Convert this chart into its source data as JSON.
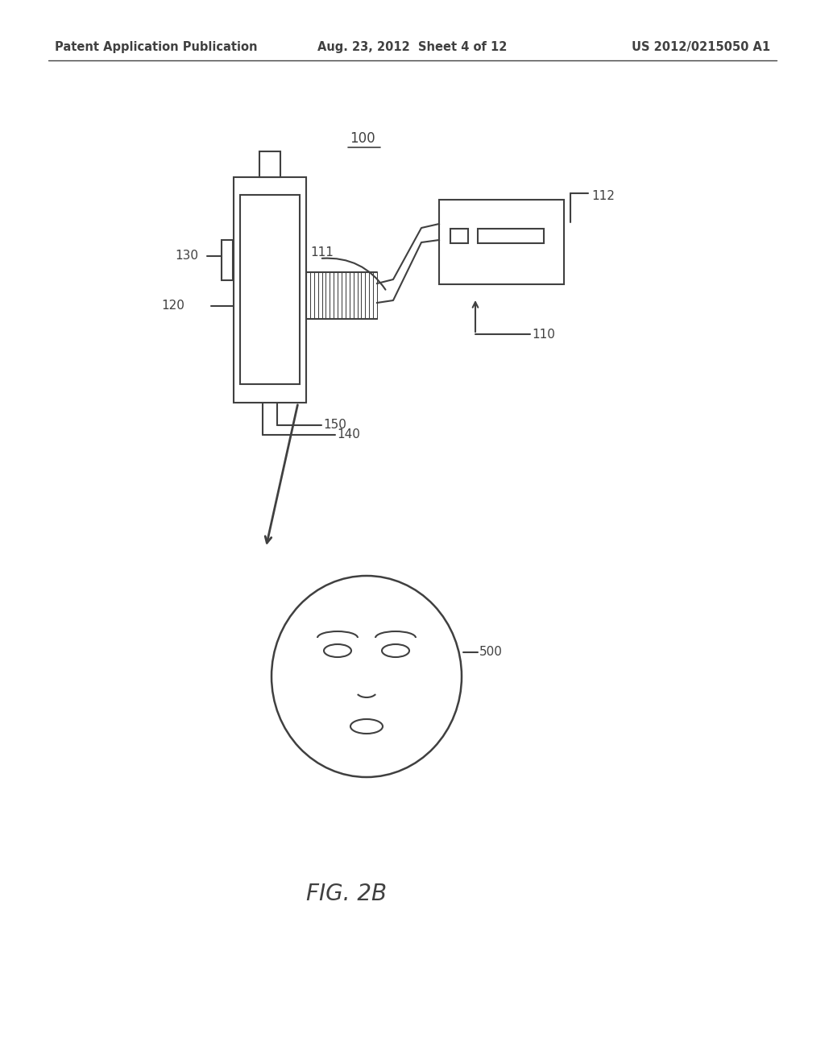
{
  "bg_color": "#ffffff",
  "line_color": "#404040",
  "text_color": "#404040",
  "header_left": "Patent Application Publication",
  "header_center": "Aug. 23, 2012  Sheet 4 of 12",
  "header_right": "US 2012/0215050 A1",
  "label_100": "100",
  "label_110": "110",
  "label_111": "111",
  "label_112": "112",
  "label_120": "120",
  "label_130": "130",
  "label_140": "140",
  "label_150": "150",
  "label_500": "500",
  "fig_label": "FIG. 2B",
  "header_fontsize": 10.5,
  "label_fontsize": 11,
  "fig_fontsize": 20
}
